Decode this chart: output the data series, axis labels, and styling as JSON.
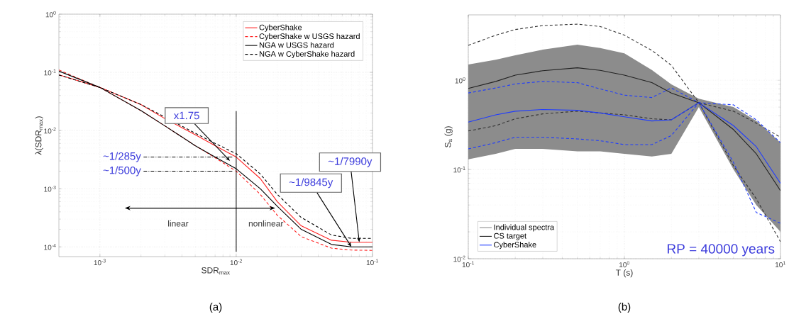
{
  "chart_data": [
    {
      "type": "line",
      "xlabel": "SDR$_{max}$",
      "ylabel": "λ(SDR$_{max}$)",
      "log": "xy",
      "grid": true,
      "legend": "top right",
      "xlim": [
        0.0005,
        0.1
      ],
      "ylim": [
        6.8e-05,
        1
      ],
      "xticks": [
        {
          "value": 0.001,
          "label": "10$^{-3}$"
        },
        {
          "value": 0.01,
          "label": "10$^{-2}$"
        },
        {
          "value": 0.1,
          "label": "10$^{-1}$"
        }
      ],
      "yticks": [
        {
          "value": 0.0001,
          "label": "10$^{-4}$"
        },
        {
          "value": 0.001,
          "label": "10$^{-3}$"
        },
        {
          "value": 0.01,
          "label": "10$^{-2}$"
        },
        {
          "value": 0.1,
          "label": "10$^{-1}$"
        },
        {
          "value": 1,
          "label": "10$^{0}$"
        }
      ],
      "x": [
        0.0005,
        0.001,
        0.002,
        0.003,
        0.005,
        0.007,
        0.01,
        0.015,
        0.02,
        0.03,
        0.05,
        0.07,
        0.1
      ],
      "series": [
        {
          "name": "CyberShake",
          "color": "#ff2020",
          "line_style": "solid",
          "values": [
            0.091,
            0.055,
            0.028,
            0.016,
            0.0085,
            0.0055,
            0.0035,
            0.0015,
            0.0006,
            0.00023,
            0.00013,
            0.00012,
            0.00012
          ]
        },
        {
          "name": "CyberShake w USGS hazard",
          "color": "#ff2020",
          "line_style": "dashed",
          "values": [
            0.11,
            0.055,
            0.022,
            0.012,
            0.0055,
            0.0034,
            0.002,
            0.0008,
            0.00035,
            0.00015,
            9.5e-05,
            8.8e-05,
            8.7e-05
          ]
        },
        {
          "name": "NGA w USGS hazard",
          "color": "#000000",
          "line_style": "solid",
          "values": [
            0.105,
            0.055,
            0.022,
            0.012,
            0.0055,
            0.0035,
            0.0022,
            0.001,
            0.0005,
            0.0002,
            0.00011,
            0.0001,
            0.0001
          ]
        },
        {
          "name": "NGA w CyberShake hazard",
          "color": "#000000",
          "line_style": "dashed",
          "values": [
            0.09,
            0.055,
            0.028,
            0.017,
            0.009,
            0.006,
            0.004,
            0.0018,
            0.0008,
            0.00032,
            0.00016,
            0.00014,
            0.00014
          ]
        }
      ],
      "ref_lines": [
        {
          "axis": "y",
          "value": 0.0035,
          "label": "~1/285y",
          "line_style": "dashdot"
        },
        {
          "axis": "y",
          "value": 0.002,
          "label": "~1/500y",
          "line_style": "dashdot"
        },
        {
          "axis": "x",
          "value": 0.01
        }
      ],
      "annotations": [
        {
          "text": "x1.75",
          "x": 0.009,
          "y": 0.003
        },
        {
          "text": "~1/9845y",
          "x": 0.07,
          "y": 0.0001
        },
        {
          "text": "~1/7990y",
          "x": 0.08,
          "y": 0.00012
        },
        "linear",
        "nonlinear",
        "(a)"
      ]
    },
    {
      "type": "line",
      "xlabel": "T (s)",
      "ylabel": "S$_{a}$ (g)",
      "log": "xy",
      "grid": true,
      "legend": "bottom left",
      "xlim": [
        0.1,
        10
      ],
      "ylim": [
        0.01,
        5.4
      ],
      "xticks": [
        {
          "value": 0.1,
          "label": "10$^{-1}$"
        },
        {
          "value": 1,
          "label": "10$^{0}$"
        },
        {
          "value": 10,
          "label": "10$^{1}$"
        }
      ],
      "yticks": [
        {
          "value": 0.01,
          "label": "10$^{-2}$"
        },
        {
          "value": 0.1,
          "label": "10$^{-1}$"
        },
        {
          "value": 1,
          "label": "10$^{0}$"
        }
      ],
      "x": [
        0.1,
        0.15,
        0.2,
        0.3,
        0.5,
        0.7,
        1,
        1.5,
        2,
        3,
        5,
        7,
        10
      ],
      "series": [
        {
          "name": "Individual spectra",
          "color": "#8c8c8c",
          "line_style": "solid",
          "values": [
            null,
            null,
            null,
            null,
            null,
            null,
            null,
            null,
            null,
            null,
            null,
            null,
            null
          ],
          "lower": [
            0.13,
            0.15,
            0.17,
            0.17,
            0.16,
            0.16,
            0.15,
            0.14,
            0.15,
            0.5,
            0.1,
            0.04,
            0.02
          ],
          "upper": [
            1.5,
            1.7,
            1.9,
            2.2,
            2.5,
            2.3,
            2.0,
            1.3,
            0.9,
            0.62,
            0.5,
            0.35,
            0.2
          ]
        },
        {
          "color": "#333333",
          "line_style": "dashed",
          "values": [
            2.46,
            3.2,
            3.7,
            4.1,
            4.25,
            4.0,
            3.2,
            2.16,
            1.47,
            0.56,
            0.45,
            0.33,
            0.23
          ]
        },
        {
          "color": "#333333",
          "line_style": "dashed",
          "values": [
            0.27,
            0.31,
            0.37,
            0.42,
            0.45,
            0.43,
            0.41,
            0.37,
            0.36,
            0.56,
            0.11,
            0.047,
            0.0155
          ]
        },
        {
          "color": "#1f3cff",
          "line_style": "dashed",
          "values": [
            0.72,
            0.82,
            0.91,
            0.97,
            0.94,
            0.8,
            0.68,
            0.64,
            0.82,
            0.56,
            0.53,
            0.36,
            0.2
          ]
        },
        {
          "color": "#1f3cff",
          "line_style": "dashed",
          "values": [
            0.17,
            0.2,
            0.23,
            0.23,
            0.22,
            0.21,
            0.19,
            0.19,
            0.24,
            0.56,
            0.12,
            0.033,
            0.025
          ]
        },
        {
          "name": "CS target",
          "color": "#222222",
          "line_style": "solid",
          "values": [
            0.81,
            0.97,
            1.14,
            1.28,
            1.38,
            1.29,
            1.14,
            0.94,
            0.72,
            0.56,
            0.28,
            0.15,
            0.058
          ]
        },
        {
          "name": "CyberShake",
          "color": "#1f3cff",
          "line_style": "solid",
          "values": [
            0.34,
            0.41,
            0.45,
            0.47,
            0.46,
            0.43,
            0.39,
            0.35,
            0.36,
            0.56,
            0.31,
            0.18,
            0.07
          ]
        }
      ],
      "annotations": [
        "RP = 40000 years",
        "(b)"
      ]
    }
  ]
}
